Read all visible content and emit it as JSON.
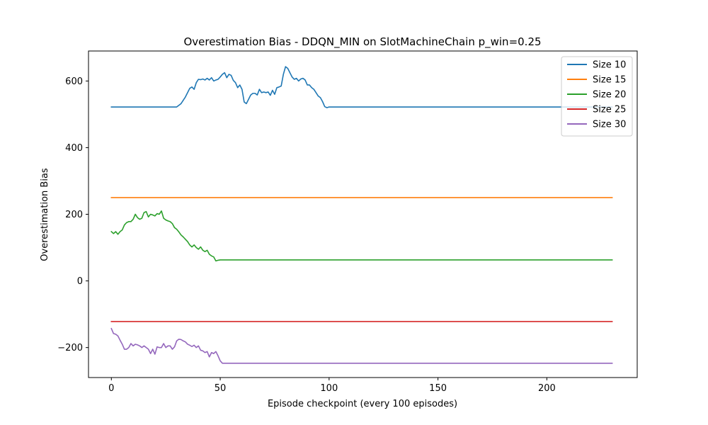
{
  "chart_data": {
    "type": "line",
    "title": "Overestimation Bias - DDQN_MIN on SlotMachineChain p_win=0.25",
    "xlabel": "Episode checkpoint (every 100 episodes)",
    "ylabel": "Overestimation Bias",
    "xlim": [
      -10.5,
      241.5
    ],
    "ylim": [
      -290,
      690
    ],
    "xticks": [
      0,
      50,
      100,
      150,
      200
    ],
    "yticks": [
      -200,
      0,
      200,
      400,
      600
    ],
    "xtick_labels": [
      "0",
      "50",
      "100",
      "150",
      "200"
    ],
    "ytick_labels": [
      "−200",
      "0",
      "200",
      "400",
      "600"
    ],
    "grid": false,
    "legend_position": "top-right",
    "series": [
      {
        "name": "Size 10",
        "color": "#1f77b4",
        "x": [
          0,
          30,
          32,
          34,
          36,
          37,
          38,
          39,
          40,
          41,
          42,
          43,
          44,
          45,
          46,
          47,
          48,
          49,
          50,
          51,
          52,
          53,
          54,
          55,
          56,
          57,
          58,
          59,
          60,
          61,
          62,
          63,
          64,
          65,
          66,
          67,
          68,
          69,
          70,
          71,
          72,
          73,
          74,
          75,
          76,
          77,
          78,
          79,
          80,
          81,
          82,
          83,
          84,
          85,
          86,
          87,
          88,
          89,
          90,
          91,
          92,
          93,
          94,
          95,
          96,
          97,
          98,
          99,
          100,
          230
        ],
        "y": [
          522,
          522,
          532,
          552,
          578,
          582,
          575,
          595,
          605,
          604,
          606,
          603,
          608,
          603,
          610,
          600,
          603,
          605,
          612,
          620,
          625,
          610,
          620,
          617,
          602,
          595,
          580,
          588,
          575,
          537,
          532,
          545,
          558,
          563,
          563,
          558,
          575,
          565,
          567,
          565,
          567,
          557,
          572,
          560,
          580,
          582,
          585,
          620,
          643,
          638,
          625,
          612,
          605,
          608,
          600,
          606,
          608,
          603,
          588,
          588,
          580,
          575,
          565,
          555,
          550,
          538,
          523,
          520,
          522,
          522
        ]
      },
      {
        "name": "Size 15",
        "color": "#ff7f0e",
        "x": [
          0,
          230
        ],
        "y": [
          250,
          250
        ]
      },
      {
        "name": "Size 20",
        "color": "#2ca02c",
        "x": [
          0,
          1,
          2,
          3,
          4,
          5,
          6,
          7,
          8,
          9,
          10,
          11,
          12,
          13,
          14,
          15,
          16,
          17,
          18,
          19,
          20,
          21,
          22,
          23,
          24,
          25,
          26,
          27,
          28,
          29,
          30,
          31,
          32,
          33,
          34,
          35,
          36,
          37,
          38,
          39,
          40,
          41,
          42,
          43,
          44,
          45,
          46,
          47,
          48,
          49,
          50,
          230
        ],
        "y": [
          148,
          142,
          148,
          140,
          148,
          153,
          168,
          175,
          178,
          178,
          185,
          200,
          190,
          185,
          188,
          205,
          208,
          192,
          200,
          198,
          195,
          202,
          200,
          210,
          188,
          183,
          180,
          178,
          172,
          160,
          155,
          147,
          138,
          132,
          125,
          118,
          108,
          102,
          108,
          100,
          95,
          102,
          92,
          88,
          92,
          80,
          75,
          72,
          60,
          62,
          63,
          63
        ]
      },
      {
        "name": "Size 25",
        "color": "#d62728",
        "x": [
          0,
          230
        ],
        "y": [
          -122,
          -122
        ]
      },
      {
        "name": "Size 30",
        "color": "#9467bd",
        "x": [
          0,
          1,
          2,
          3,
          4,
          5,
          6,
          7,
          8,
          9,
          10,
          11,
          12,
          13,
          14,
          15,
          16,
          17,
          18,
          19,
          20,
          21,
          22,
          23,
          24,
          25,
          26,
          27,
          28,
          29,
          30,
          31,
          32,
          33,
          34,
          35,
          36,
          37,
          38,
          39,
          40,
          41,
          42,
          43,
          44,
          45,
          46,
          47,
          48,
          49,
          50,
          51,
          230
        ],
        "y": [
          -143,
          -158,
          -160,
          -165,
          -178,
          -190,
          -205,
          -205,
          -200,
          -188,
          -195,
          -190,
          -192,
          -195,
          -200,
          -195,
          -200,
          -205,
          -218,
          -205,
          -220,
          -198,
          -200,
          -200,
          -188,
          -200,
          -195,
          -195,
          -205,
          -198,
          -180,
          -175,
          -176,
          -180,
          -183,
          -190,
          -193,
          -197,
          -193,
          -200,
          -195,
          -208,
          -210,
          -215,
          -212,
          -228,
          -215,
          -218,
          -212,
          -225,
          -240,
          -247,
          -247
        ]
      }
    ]
  }
}
